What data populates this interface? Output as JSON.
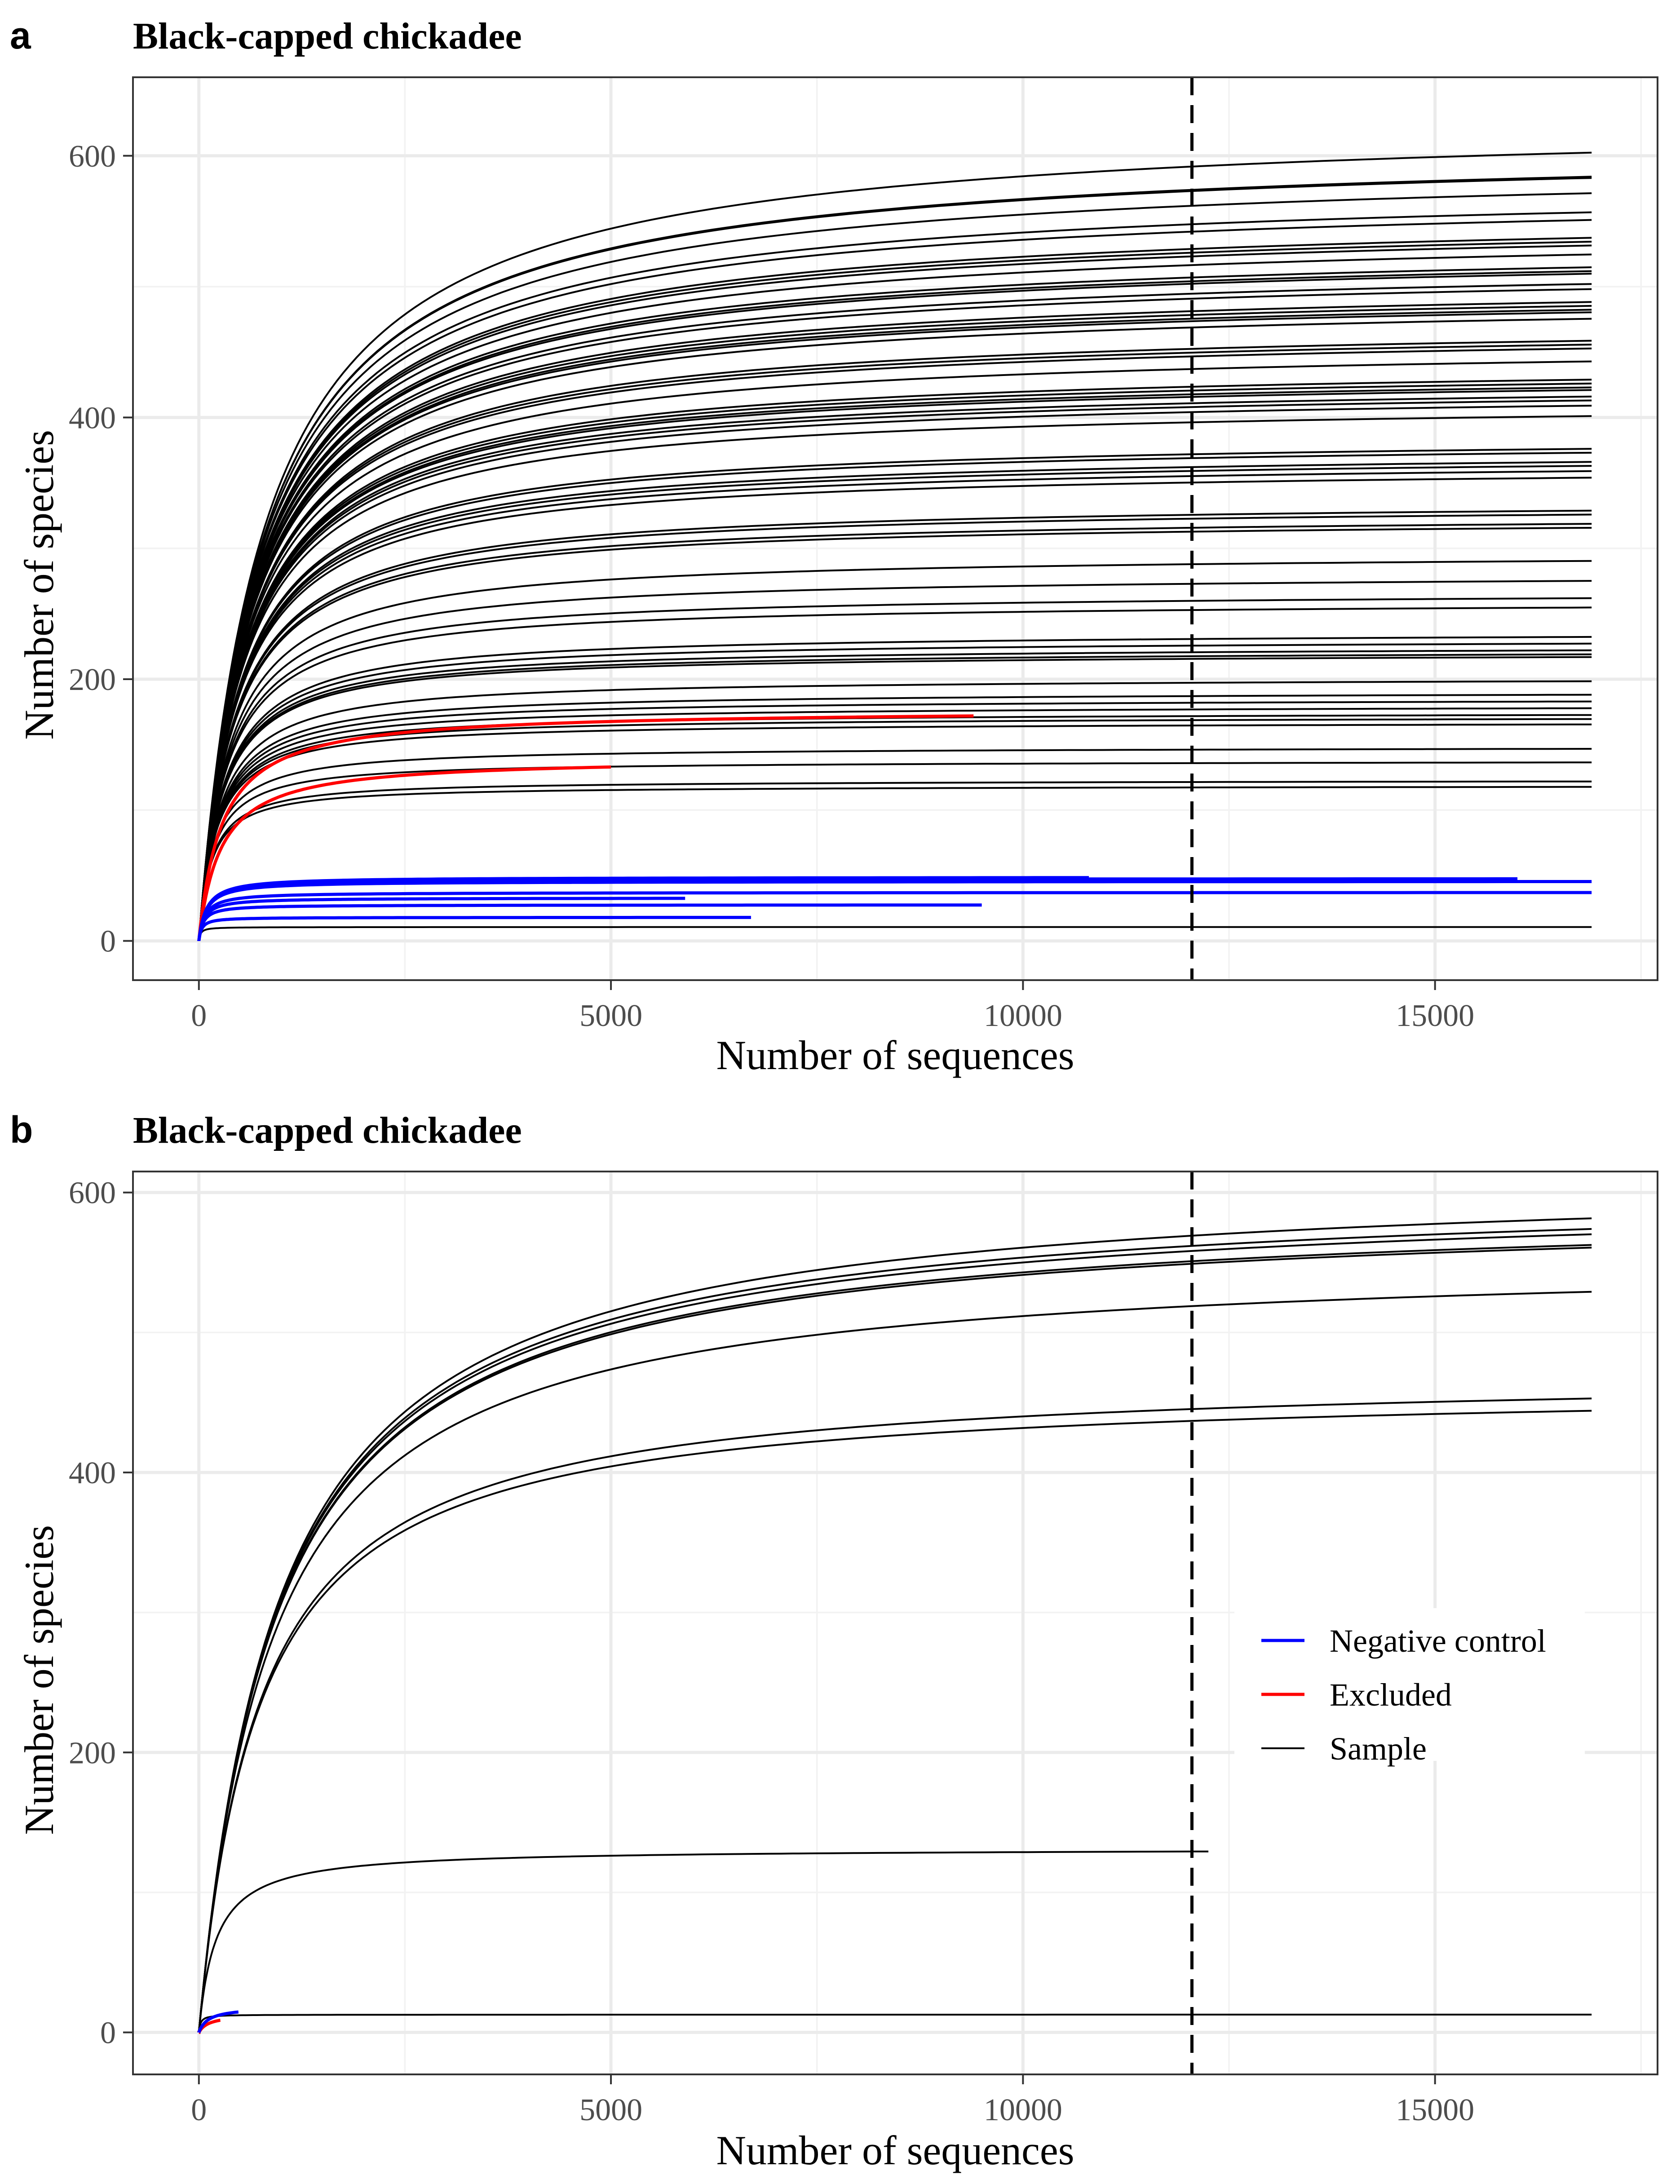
{
  "figure": {
    "xlabel": "Number of sequences",
    "ylabel": "Number of species"
  },
  "legend": {
    "entries": [
      {
        "label": "Negative control",
        "color": "#0000ff"
      },
      {
        "label": "Excluded",
        "color": "#ff0000"
      },
      {
        "label": "Sample",
        "color": "#000000"
      }
    ]
  },
  "chart_data": [
    {
      "type": "line",
      "panel": "a",
      "title": "Black-capped chickadee",
      "xlabel": "Number of sequences",
      "ylabel": "Number of species",
      "xlim": [
        -800,
        17700
      ],
      "ylim": [
        -30,
        660
      ],
      "x_ticks": [
        0,
        5000,
        10000,
        15000
      ],
      "y_ticks": [
        0,
        200,
        400,
        600
      ],
      "grid": true,
      "rarefaction_depth": 12050,
      "series": [
        {
          "group": "Sample",
          "color": "#000000",
          "plateaus": [
            595,
            576,
            575,
            563,
            548,
            542,
            528,
            525,
            522,
            515,
            505,
            502,
            500,
            492,
            488,
            478,
            475,
            472,
            470,
            465,
            448,
            445,
            442,
            432,
            418,
            415,
            412,
            410,
            405,
            402,
            398,
            390,
            365,
            362,
            355,
            352,
            348,
            343,
            318,
            315,
            308,
            305,
            280,
            265,
            252,
            245,
            223,
            218,
            213,
            210,
            208,
            190,
            180,
            175,
            170,
            165,
            162,
            158,
            140,
            130,
            116,
            112
          ],
          "x_end": 16900,
          "start_slope": 0.75
        },
        {
          "group": "Sample",
          "color": "#000000",
          "plateaus": [
            10
          ],
          "x_end": 16900,
          "start_slope": 0.5
        },
        {
          "group": "Excluded",
          "color": "#ff0000",
          "plateaus": [
            167
          ],
          "x_end": 9400,
          "start_slope": 0.6
        },
        {
          "group": "Excluded",
          "color": "#ff0000",
          "plateaus": [
            132
          ],
          "x_end": 5000,
          "start_slope": 0.5
        },
        {
          "group": "Negative control",
          "color": "#0000ff",
          "plateaus": [
            46
          ],
          "x_end": 10800,
          "start_slope": 0.5
        },
        {
          "group": "Negative control",
          "color": "#0000ff",
          "plateaus": [
            45
          ],
          "x_end": 16000,
          "start_slope": 0.5
        },
        {
          "group": "Negative control",
          "color": "#0000ff",
          "plateaus": [
            43
          ],
          "x_end": 16900,
          "start_slope": 0.5
        },
        {
          "group": "Negative control",
          "color": "#0000ff",
          "plateaus": [
            35
          ],
          "x_end": 16900,
          "start_slope": 0.5
        },
        {
          "group": "Negative control",
          "color": "#0000ff",
          "plateaus": [
            31
          ],
          "x_end": 5900,
          "start_slope": 0.5
        },
        {
          "group": "Negative control",
          "color": "#0000ff",
          "plateaus": [
            26
          ],
          "x_end": 9500,
          "start_slope": 0.5
        },
        {
          "group": "Negative control",
          "color": "#0000ff",
          "plateaus": [
            17
          ],
          "x_end": 6700,
          "start_slope": 0.5
        }
      ]
    },
    {
      "type": "line",
      "panel": "b",
      "title": "Black-capped chickadee",
      "xlabel": "Number of sequences",
      "ylabel": "Number of species",
      "xlim": [
        -800,
        17700
      ],
      "ylim": [
        -30,
        615
      ],
      "x_ticks": [
        0,
        5000,
        10000,
        15000
      ],
      "y_ticks": [
        0,
        200,
        400,
        600
      ],
      "grid": true,
      "rarefaction_depth": 12050,
      "legend_position": "right",
      "series": [
        {
          "group": "Sample",
          "color": "#000000",
          "plateaus": [
            580
          ],
          "x_end": 16900,
          "start_slope": 0.6
        },
        {
          "group": "Sample",
          "color": "#000000",
          "plateaus": [
            572
          ],
          "x_end": 16900,
          "start_slope": 0.6
        },
        {
          "group": "Sample",
          "color": "#000000",
          "plateaus": [
            568
          ],
          "x_end": 16900,
          "start_slope": 0.6
        },
        {
          "group": "Sample",
          "color": "#000000",
          "plateaus": [
            560
          ],
          "x_end": 16900,
          "start_slope": 0.6
        },
        {
          "group": "Sample",
          "color": "#000000",
          "plateaus": [
            558
          ],
          "x_end": 16900,
          "start_slope": 0.6
        },
        {
          "group": "Sample",
          "color": "#000000",
          "plateaus": [
            525
          ],
          "x_end": 16900,
          "start_slope": 0.6
        },
        {
          "group": "Sample",
          "color": "#000000",
          "plateaus": [
            446
          ],
          "x_end": 16900,
          "start_slope": 0.6
        },
        {
          "group": "Sample",
          "color": "#000000",
          "plateaus": [
            437
          ],
          "x_end": 16900,
          "start_slope": 0.6
        },
        {
          "group": "Sample",
          "color": "#000000",
          "plateaus": [
            124
          ],
          "x_end": 12250,
          "start_slope": 0.6
        },
        {
          "group": "Sample",
          "color": "#000000",
          "plateaus": [
            12
          ],
          "x_end": 16900,
          "start_slope": 0.6
        },
        {
          "group": "Negative control",
          "color": "#0000ff",
          "plateaus": [
            17
          ],
          "x_end": 480,
          "start_slope": 0.15
        },
        {
          "group": "Excluded",
          "color": "#ff0000",
          "plateaus": [
            12
          ],
          "x_end": 260,
          "start_slope": 0.1
        }
      ]
    }
  ]
}
